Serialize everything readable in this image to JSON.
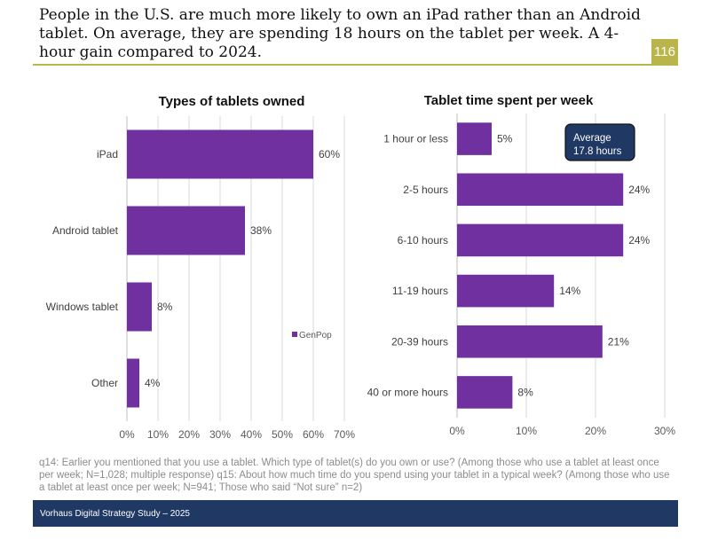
{
  "headline": "People in the U.S. are much more likely to own an iPad rather than an Android tablet. On average, they are spending 18 hours on the tablet per week. A 4-hour gain compared to 2024.",
  "page_number": "116",
  "footnote": "q14: Earlier you mentioned that you use a tablet. Which type of tablet(s) do you own or use? (Among those who use a tablet at least once per week; N=1,028; multiple response) q15: About how much time do you spend using your tablet in a typical week? (Among those who use a tablet at least once per week; N=941; Those who said “Not sure” n=2)",
  "footer": "Vorhaus Digital Strategy Study – 2025",
  "colors": {
    "bar": "#7030a0",
    "accent": "#b9b54a",
    "navy": "#1f3864"
  },
  "chart_data": [
    {
      "type": "bar",
      "orientation": "horizontal",
      "title": "Types of tablets owned",
      "categories": [
        "iPad",
        "Android tablet",
        "Windows tablet",
        "Other"
      ],
      "series": [
        {
          "name": "GenPop",
          "values": [
            60,
            38,
            8,
            4
          ]
        }
      ],
      "value_labels": [
        "60%",
        "38%",
        "8%",
        "4%"
      ],
      "xlim": [
        0,
        70
      ],
      "xticks": [
        0,
        10,
        20,
        30,
        40,
        50,
        60,
        70
      ],
      "xtick_labels": [
        "0%",
        "10%",
        "20%",
        "30%",
        "40%",
        "50%",
        "60%",
        "70%"
      ],
      "legend": "center-right",
      "grid": true
    },
    {
      "type": "bar",
      "orientation": "horizontal",
      "title": "Tablet time spent per week",
      "categories": [
        "1 hour or less",
        "2-5 hours",
        "6-10 hours",
        "11-19 hours",
        "20-39 hours",
        "40 or more hours"
      ],
      "series": [
        {
          "name": "GenPop",
          "values": [
            5,
            24,
            24,
            14,
            21,
            8
          ]
        }
      ],
      "value_labels": [
        "5%",
        "24%",
        "24%",
        "14%",
        "21%",
        "8%"
      ],
      "xlim": [
        0,
        30
      ],
      "xticks": [
        0,
        10,
        20,
        30
      ],
      "xtick_labels": [
        "0%",
        "10%",
        "20%",
        "30%"
      ],
      "annotation": {
        "line1": "Average",
        "line2": "17.8 hours"
      },
      "grid": true
    }
  ]
}
